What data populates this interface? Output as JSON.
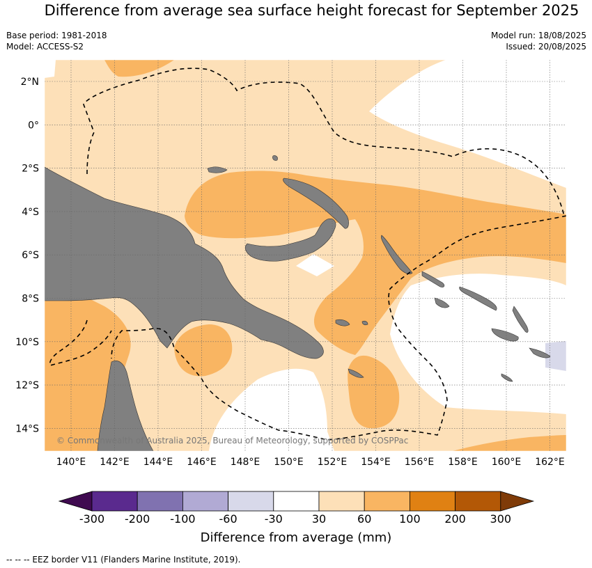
{
  "title": "Difference from average sea surface height forecast for September 2025",
  "meta": {
    "base_period": "Base period: 1981-2018",
    "model": "Model: ACCESS-S2",
    "model_run": "Model run: 18/08/2025",
    "issued": "Issued: 20/08/2025"
  },
  "map": {
    "lon_labels": [
      "140°E",
      "142°E",
      "144°E",
      "146°E",
      "148°E",
      "150°E",
      "152°E",
      "154°E",
      "156°E",
      "158°E",
      "160°E",
      "162°E"
    ],
    "lat_labels": [
      "2°N",
      "0°",
      "2°S",
      "4°S",
      "6°S",
      "8°S",
      "10°S",
      "12°S",
      "14°S"
    ],
    "copyright": "© Commonwealth of Australia 2025, Bureau of Meteorology, supported by COSPPac",
    "colors": {
      "land": "#808080",
      "c_30_60": "#fde0b8",
      "c_60_100": "#f9b562",
      "c_-60_-30": "#d8d9ea",
      "neutral": "#ffffff"
    }
  },
  "colorbar": {
    "ticks": [
      "-300",
      "-200",
      "-100",
      "-60",
      "-30",
      "30",
      "60",
      "100",
      "200",
      "300"
    ],
    "colors": [
      "#3f0a50",
      "#5a2a8e",
      "#8072b0",
      "#b1aad4",
      "#d8d9ea",
      "#ffffff",
      "#fde0b8",
      "#f9b562",
      "#e08113",
      "#b35806",
      "#7f3b08"
    ],
    "title": "Difference from average (mm)"
  },
  "footnote": "--  --  -- EEZ border V11 (Flanders Marine Institute, 2019)."
}
